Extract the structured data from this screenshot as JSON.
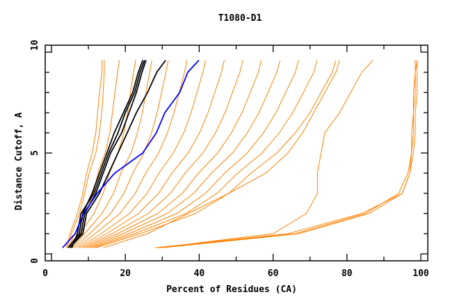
{
  "chart_data": {
    "type": "line",
    "title": "T1080-D1",
    "xlabel": "Percent of Residues (CA)",
    "ylabel": "Distance Cutoff, A",
    "xlim": [
      0,
      100
    ],
    "ylim": [
      0,
      10
    ],
    "x_tick_labels": [
      "0",
      "20",
      "40",
      "60",
      "80",
      "100"
    ],
    "x_tick_values": [
      0,
      20,
      40,
      60,
      80,
      100
    ],
    "x_minor_step": 10,
    "y_tick_labels": [
      "0",
      "5",
      "10"
    ],
    "y_tick_values": [
      0,
      5,
      10
    ],
    "y_minor_step": 1,
    "grid": false,
    "colors": {
      "models": "#ff8000",
      "highlight": "#000000",
      "reference": "#0000ff"
    },
    "y_levels": [
      0.3,
      1,
      2,
      3,
      4,
      5,
      6,
      7,
      8,
      9,
      9.6
    ],
    "series": [
      {
        "name": "model",
        "group": "models",
        "x": [
          4,
          5,
          7,
          8.5,
          9.5,
          11,
          12,
          12.5,
          13,
          13.7,
          13.7
        ]
      },
      {
        "name": "model",
        "group": "models",
        "x": [
          4.3,
          5.4,
          7.6,
          9,
          10.2,
          12,
          13,
          13.6,
          14,
          14.3,
          14.3
        ]
      },
      {
        "name": "model",
        "group": "models",
        "x": [
          4.6,
          6.3,
          9.2,
          11.3,
          12.6,
          14.5,
          15.8,
          16.5,
          17.2,
          17.9,
          18.4
        ]
      },
      {
        "name": "model",
        "group": "models",
        "x": [
          5.1,
          7.7,
          11.5,
          14.0,
          15.7,
          18,
          19.6,
          20.6,
          21.4,
          22.2,
          22.8
        ]
      },
      {
        "name": "model",
        "group": "models",
        "x": [
          5.7,
          9,
          13.7,
          16.8,
          18.8,
          21.5,
          23.3,
          24.6,
          25.6,
          26.6,
          27.2
        ]
      },
      {
        "name": "model",
        "group": "models",
        "x": [
          6.2,
          10.3,
          16,
          19.6,
          22,
          25,
          27.1,
          28.6,
          29.8,
          31,
          31.6
        ]
      },
      {
        "name": "model",
        "group": "models",
        "x": [
          6.9,
          11.8,
          18.5,
          22.7,
          25.5,
          29,
          31.4,
          33.2,
          34.6,
          36,
          36.7
        ]
      },
      {
        "name": "model",
        "group": "models",
        "x": [
          7.5,
          13.4,
          21.1,
          25.9,
          29.1,
          33,
          35.8,
          37.8,
          39.4,
          41,
          41.7
        ]
      },
      {
        "name": "model",
        "group": "models",
        "x": [
          8.2,
          14.9,
          23.6,
          29,
          32.6,
          37,
          40.1,
          42.4,
          44.2,
          46,
          46.8
        ]
      },
      {
        "name": "model",
        "group": "models",
        "x": [
          8.8,
          16.4,
          26.2,
          32.2,
          36.2,
          41,
          44.4,
          47,
          49,
          51,
          51.8
        ]
      },
      {
        "name": "model",
        "group": "models",
        "x": [
          9.4,
          17.9,
          28.8,
          35.4,
          39.8,
          45,
          48.7,
          51.6,
          53.8,
          56,
          56.8
        ]
      },
      {
        "name": "model",
        "group": "models",
        "x": [
          10.1,
          19.4,
          31.3,
          38.5,
          43.3,
          49,
          53,
          56.2,
          58.6,
          61,
          61.9
        ]
      },
      {
        "name": "model",
        "group": "models",
        "x": [
          10.7,
          21,
          33.9,
          41.7,
          46.9,
          53,
          57.4,
          60.8,
          63.4,
          66,
          66.9
        ]
      },
      {
        "name": "model",
        "group": "models",
        "x": [
          11.4,
          22.5,
          36.4,
          44.8,
          50.4,
          57,
          61.7,
          65.3,
          68.2,
          71,
          71.9
        ]
      },
      {
        "name": "model",
        "group": "models",
        "x": [
          12,
          24,
          39,
          48,
          54,
          61,
          66,
          70,
          73,
          76,
          77
        ]
      },
      {
        "name": "model",
        "group": "models",
        "x": [
          14,
          26,
          37,
          48,
          58,
          64,
          68,
          71,
          74,
          77,
          78
        ]
      },
      {
        "name": "model",
        "group": "models",
        "x": [
          29,
          60,
          69,
          72,
          72,
          73,
          74,
          78,
          81,
          84,
          87
        ]
      },
      {
        "name": "model",
        "group": "models",
        "x": [
          28,
          64,
          84,
          95,
          97,
          97.5,
          98,
          98,
          98.5,
          98.5,
          99
        ]
      },
      {
        "name": "model",
        "group": "models",
        "x": [
          29,
          66,
          85,
          94,
          96.5,
          97.5,
          97.5,
          98,
          98,
          98.5,
          98.5
        ]
      },
      {
        "name": "model",
        "group": "models",
        "x": [
          30,
          67,
          86,
          95,
          97,
          98,
          98.5,
          98.5,
          99,
          99,
          99
        ]
      },
      {
        "name": "highlight",
        "group": "highlight",
        "x": [
          4.5,
          7.5,
          8.5,
          11,
          13,
          15,
          17,
          19.5,
          22,
          23.5,
          24.7
        ]
      },
      {
        "name": "highlight",
        "group": "highlight",
        "x": [
          5,
          8,
          9,
          12,
          14,
          16,
          19,
          21,
          23,
          24.5,
          25.6
        ]
      },
      {
        "name": "highlight",
        "group": "highlight",
        "x": [
          5.5,
          7,
          8,
          11.5,
          13.5,
          15.5,
          18,
          20,
          22.5,
          24,
          25.2
        ]
      },
      {
        "name": "highlight",
        "group": "highlight",
        "x": [
          5,
          8.5,
          9.5,
          13,
          15.5,
          18,
          20.5,
          23,
          26,
          28.5,
          30.9
        ]
      },
      {
        "name": "reference",
        "group": "reference",
        "x": [
          3,
          6.4,
          8.7,
          12.4,
          17.1,
          24.7,
          28.4,
          30.7,
          34.7,
          36.9,
          39.9
        ]
      }
    ]
  }
}
